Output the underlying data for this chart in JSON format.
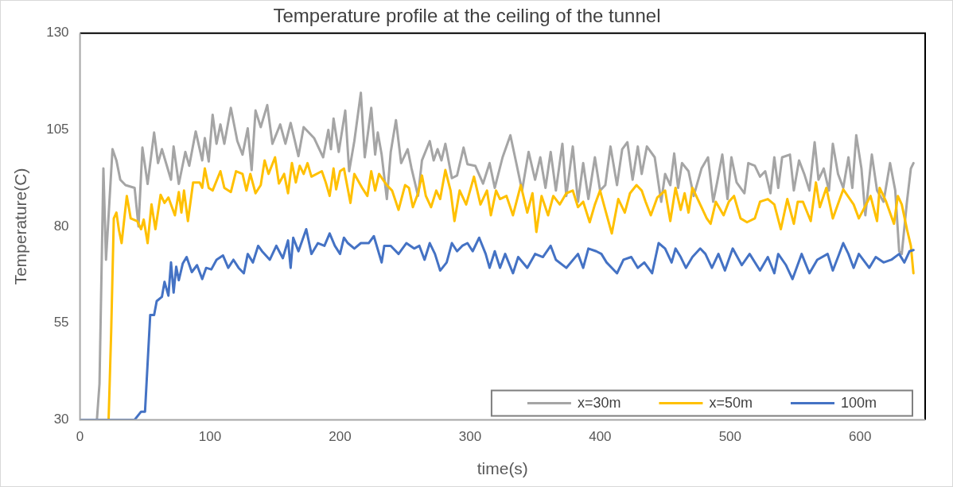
{
  "chart_data": {
    "type": "line",
    "title": "Temperature profile at the ceiling of the tunnel",
    "xlabel": "time(s)",
    "ylabel": "Temperature(C)",
    "xlim": [
      0,
      650
    ],
    "xticks": [
      0,
      100,
      200,
      300,
      400,
      500,
      600
    ],
    "ylim": [
      30,
      130
    ],
    "yticks": [
      30,
      55,
      80,
      105,
      130
    ],
    "grid": false,
    "legend": "bottom right",
    "marker": "none",
    "line_style": "solid",
    "series": [
      {
        "name": "x=30m",
        "color": "#a5a5a5",
        "x": [
          13,
          15,
          18,
          20,
          25,
          28,
          31,
          35,
          42,
          45,
          48,
          52,
          57,
          60,
          63,
          70,
          72,
          76,
          81,
          84,
          89,
          94,
          96,
          99,
          102,
          105,
          108,
          111,
          116,
          121,
          125,
          129,
          132,
          135,
          139,
          144,
          148,
          154,
          158,
          162,
          168,
          172,
          180,
          187,
          191,
          193,
          195,
          199,
          204,
          207,
          211,
          216,
          219,
          224,
          227,
          229,
          232,
          236,
          239,
          243,
          247,
          252,
          255,
          260,
          263,
          269,
          272,
          275,
          278,
          281,
          286,
          290,
          295,
          298,
          304,
          310,
          315,
          319,
          325,
          331,
          336,
          340,
          345,
          350,
          354,
          358,
          362,
          366,
          371,
          374,
          379,
          383,
          387,
          391,
          396,
          400,
          404,
          408,
          413,
          417,
          421,
          425,
          429,
          432,
          436,
          442,
          447,
          450,
          454,
          457,
          460,
          463,
          468,
          472,
          478,
          483,
          487,
          490,
          494,
          498,
          501,
          505,
          511,
          514,
          519,
          523,
          527,
          531,
          534,
          537,
          540,
          546,
          549,
          553,
          557,
          561,
          565,
          568,
          572,
          576,
          579,
          583,
          587,
          591,
          594,
          597,
          601,
          604,
          609,
          613,
          618,
          623,
          627,
          630,
          632,
          636,
          639,
          641
        ],
        "values": [
          30,
          39.3,
          95,
          71.4,
          100,
          97.1,
          92.1,
          90.7,
          90,
          80,
          100.4,
          91,
          104.3,
          96.4,
          100,
          92.1,
          100.7,
          91,
          99.3,
          95.7,
          104.6,
          97.1,
          102.9,
          96.8,
          108.9,
          101.4,
          106.4,
          101.4,
          110.7,
          102.1,
          98.6,
          105.4,
          94.6,
          110,
          105.7,
          111.4,
          101.4,
          106.4,
          101.4,
          106.8,
          98.2,
          105.7,
          102.9,
          97.9,
          105,
          100,
          107.9,
          99.3,
          110,
          94.3,
          102.1,
          114.6,
          97.9,
          110.7,
          98.6,
          104.3,
          98.6,
          87.1,
          99.3,
          107.5,
          96.4,
          100,
          95,
          87.9,
          97.1,
          102.1,
          97.1,
          100,
          97.1,
          101.4,
          92.5,
          93.2,
          100.4,
          96.1,
          95.7,
          91.1,
          96.4,
          90,
          97.9,
          103.6,
          95.7,
          89.3,
          99.3,
          92.1,
          97.9,
          90,
          99.3,
          89.3,
          101.4,
          87.9,
          100.7,
          86.4,
          96.4,
          87.1,
          97.9,
          89.3,
          90.7,
          100.7,
          90.7,
          100,
          101.8,
          92.1,
          100.7,
          93.6,
          100.7,
          97.9,
          86.4,
          93.6,
          90.7,
          98.9,
          90,
          96.4,
          94.3,
          87.9,
          95,
          97.9,
          86.4,
          91.4,
          98.6,
          87.1,
          97.9,
          91.4,
          88.6,
          96.4,
          95.7,
          92.9,
          94.3,
          88.6,
          97.9,
          90,
          97.9,
          98.6,
          89.3,
          97.1,
          93.6,
          89.3,
          101.8,
          92.1,
          95,
          89.3,
          101.4,
          93.6,
          90,
          97.9,
          90,
          103.6,
          95,
          82.9,
          98.6,
          89.3,
          86.4,
          96.4,
          89.3,
          73.6,
          72.9,
          86.4,
          95,
          96.4
        ]
      },
      {
        "name": "x=50m",
        "color": "#ffc000",
        "x": [
          22,
          24,
          26,
          28,
          30,
          32,
          36,
          39,
          44,
          47,
          49,
          52,
          55,
          58,
          62,
          65,
          68,
          73,
          76,
          78,
          80,
          83,
          87,
          92,
          94,
          96,
          99,
          102,
          108,
          111,
          116,
          120,
          125,
          128,
          131,
          135,
          139,
          142,
          145,
          150,
          153,
          157,
          160,
          163,
          166,
          169,
          172,
          175,
          178,
          186,
          189,
          192,
          195,
          197,
          200,
          203,
          208,
          211,
          217,
          221,
          224,
          227,
          230,
          233,
          236,
          240,
          245,
          250,
          253,
          256,
          260,
          263,
          266,
          270,
          274,
          277,
          281,
          285,
          288,
          292,
          297,
          303,
          308,
          313,
          316,
          320,
          323,
          328,
          333,
          339,
          344,
          348,
          351,
          355,
          360,
          364,
          369,
          374,
          379,
          383,
          387,
          392,
          396,
          400,
          404,
          409,
          414,
          419,
          423,
          428,
          432,
          435,
          439,
          444,
          450,
          454,
          458,
          462,
          465,
          468,
          471,
          477,
          482,
          485,
          489,
          495,
          499,
          503,
          508,
          513,
          519,
          523,
          529,
          534,
          539,
          544,
          549,
          552,
          556,
          562,
          566,
          569,
          574,
          579,
          587,
          595,
          599,
          608,
          613,
          615,
          620,
          626,
          629,
          632,
          636,
          639,
          641
        ],
        "values": [
          30,
          53,
          82.1,
          83.6,
          79,
          75.7,
          87.9,
          82.1,
          81.4,
          79.3,
          81.8,
          75.7,
          85.7,
          79.3,
          88.2,
          86.1,
          87.5,
          82.9,
          88.9,
          83.6,
          89.3,
          81.4,
          91.4,
          91.4,
          90,
          95,
          90,
          89.3,
          94.3,
          90,
          88.9,
          94.3,
          93.6,
          89.3,
          93.6,
          88.6,
          90.7,
          97.1,
          93.6,
          97.9,
          91.1,
          93.6,
          88.6,
          96.4,
          91.4,
          95.7,
          93.6,
          96.4,
          92.9,
          94.3,
          91.4,
          87.9,
          95,
          89.6,
          94.3,
          95,
          86.1,
          93.6,
          90,
          87.9,
          94.3,
          89.3,
          93.6,
          92.1,
          90.7,
          89.3,
          84.3,
          90.7,
          90,
          85,
          88.6,
          93.2,
          87.9,
          85,
          89.3,
          87.1,
          94.6,
          89.3,
          81.4,
          89.3,
          85.7,
          92.9,
          85.7,
          89.3,
          82.9,
          89.3,
          87.1,
          87.9,
          82.9,
          90.7,
          83.6,
          88.6,
          78.6,
          87.9,
          82.9,
          87.9,
          85.7,
          88.6,
          89.3,
          85,
          86.4,
          81.1,
          85.7,
          89.3,
          84.3,
          78.2,
          87.1,
          83.6,
          88.6,
          90.7,
          89.3,
          86.4,
          82.9,
          87.5,
          89.3,
          81.4,
          90,
          84.3,
          88.6,
          83.6,
          90,
          85.7,
          82.1,
          80.7,
          86.4,
          82.9,
          86.4,
          87.9,
          82.1,
          81.1,
          82.1,
          86.4,
          87.1,
          85.7,
          79.3,
          87.1,
          80.7,
          86.4,
          86.4,
          81.4,
          91.4,
          85,
          90,
          82.1,
          89.6,
          85.7,
          82.1,
          87.9,
          81.4,
          90,
          86.4,
          80.7,
          87.9,
          85.7,
          79.3,
          75,
          67.9
        ]
      },
      {
        "name": "100m",
        "color": "#4472c4",
        "x": [
          0,
          42,
          47,
          50,
          54,
          57,
          59,
          63,
          65,
          68,
          70,
          72,
          74,
          76,
          79,
          82,
          86,
          90,
          94,
          97,
          101,
          105,
          110,
          114,
          118,
          122,
          126,
          129,
          133,
          137,
          140,
          146,
          151,
          156,
          160,
          162,
          164,
          168,
          174,
          178,
          183,
          188,
          192,
          196,
          200,
          203,
          206,
          211,
          216,
          222,
          226,
          232,
          234,
          239,
          245,
          251,
          257,
          261,
          265,
          269,
          273,
          277,
          282,
          286,
          290,
          294,
          298,
          302,
          307,
          312,
          315,
          319,
          323,
          327,
          333,
          337,
          344,
          350,
          356,
          362,
          366,
          374,
          383,
          387,
          391,
          397,
          401,
          405,
          413,
          418,
          424,
          429,
          434,
          440,
          445,
          450,
          455,
          458,
          462,
          466,
          471,
          477,
          481,
          486,
          491,
          496,
          502,
          509,
          515,
          523,
          529,
          534,
          537,
          543,
          548,
          555,
          561,
          567,
          575,
          579,
          583,
          587,
          591,
          595,
          599,
          607,
          612,
          618,
          624,
          630,
          634,
          638,
          641
        ],
        "values": [
          30,
          30,
          32.1,
          32.1,
          57.1,
          57.1,
          60.7,
          61.8,
          65.7,
          62.1,
          70.7,
          62.9,
          69.6,
          66.1,
          70.4,
          72.1,
          68.2,
          70,
          66.4,
          69.3,
          68.9,
          71.4,
          72.5,
          69.3,
          71.4,
          69.3,
          67.9,
          72.9,
          70.7,
          75,
          73.6,
          71.4,
          75,
          71.8,
          76.4,
          69.3,
          77.1,
          73.6,
          79.3,
          72.9,
          75.7,
          75,
          78.2,
          75,
          72.9,
          77.1,
          75.7,
          74.3,
          75.7,
          75.7,
          77.5,
          70.7,
          75,
          75,
          72.9,
          75.7,
          74.3,
          75,
          71.4,
          75.7,
          72.9,
          68.6,
          70.7,
          75.7,
          73.6,
          75,
          75.7,
          73.6,
          77.1,
          72.9,
          69.3,
          73.6,
          69.3,
          72.9,
          67.9,
          72.1,
          69.3,
          72.9,
          72.1,
          75,
          71.4,
          69.3,
          72.9,
          69.3,
          74.3,
          73.6,
          72.9,
          70.7,
          67.9,
          71.4,
          72.1,
          69.3,
          70.7,
          67.9,
          75.7,
          74.3,
          70.7,
          74.3,
          72.1,
          69.3,
          72.1,
          74.3,
          72.9,
          69.3,
          72.9,
          68.6,
          74.3,
          70,
          72.9,
          68.6,
          72.1,
          67.9,
          72.9,
          70,
          66.4,
          72.9,
          67.9,
          71.4,
          72.9,
          68.6,
          72.1,
          75.7,
          72.9,
          69.3,
          72.9,
          69.3,
          72.1,
          70.7,
          71.4,
          72.9,
          70.7,
          73.6,
          73.9
        ]
      }
    ]
  }
}
